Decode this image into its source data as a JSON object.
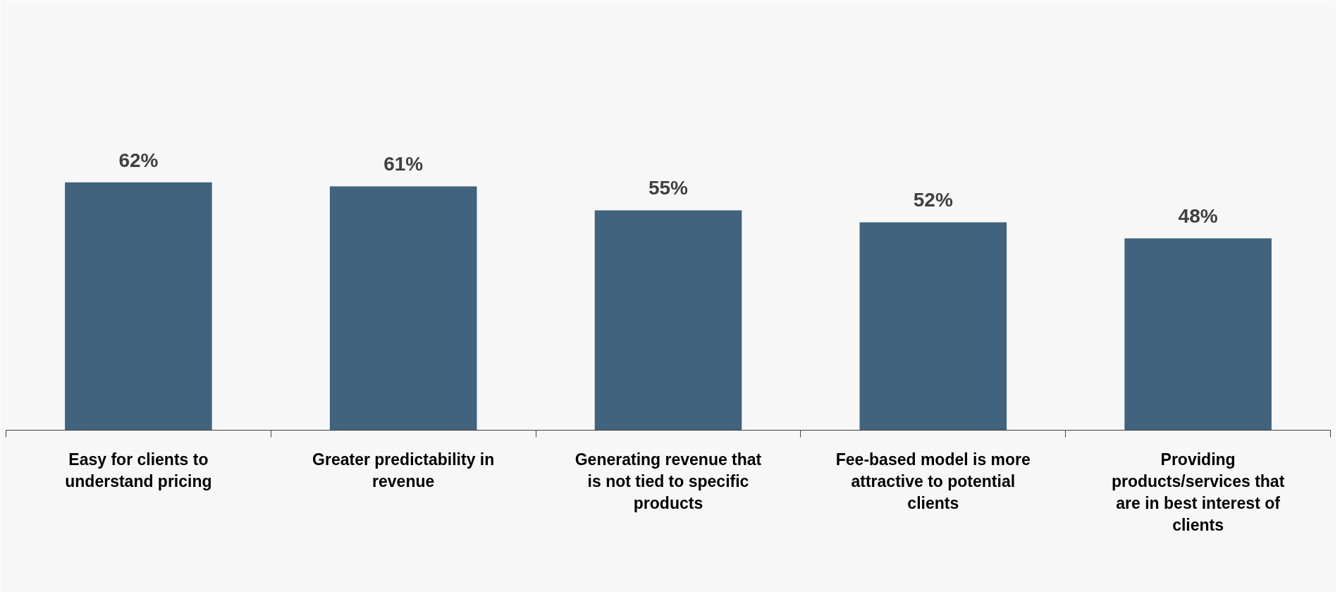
{
  "chart_data": {
    "type": "bar",
    "categories": [
      "Easy for clients to understand pricing",
      "Greater predictability in revenue",
      "Generating revenue that is not tied to specific products",
      "Fee-based model is more attractive to potential clients",
      "Providing products/services that are in best interest of clients"
    ],
    "values": [
      62,
      61,
      55,
      52,
      48
    ],
    "color": "#41637d",
    "value_labels": [
      "62%",
      "61%",
      "55%",
      "52%",
      "48%"
    ]
  }
}
